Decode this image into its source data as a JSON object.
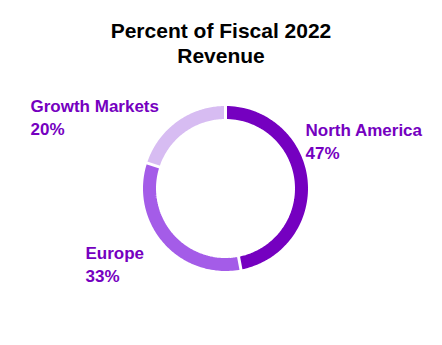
{
  "chart_data": {
    "type": "pie",
    "title": "Percent of Fiscal 2022 Revenue",
    "categories": [
      "North America",
      "Europe",
      "Growth Markets"
    ],
    "values": [
      47,
      33,
      20
    ],
    "value_labels": [
      "47%",
      "33%",
      "20%"
    ],
    "colors": [
      "#7500c0",
      "#a45ce8",
      "#d7bcf2"
    ],
    "data_labels": true
  }
}
